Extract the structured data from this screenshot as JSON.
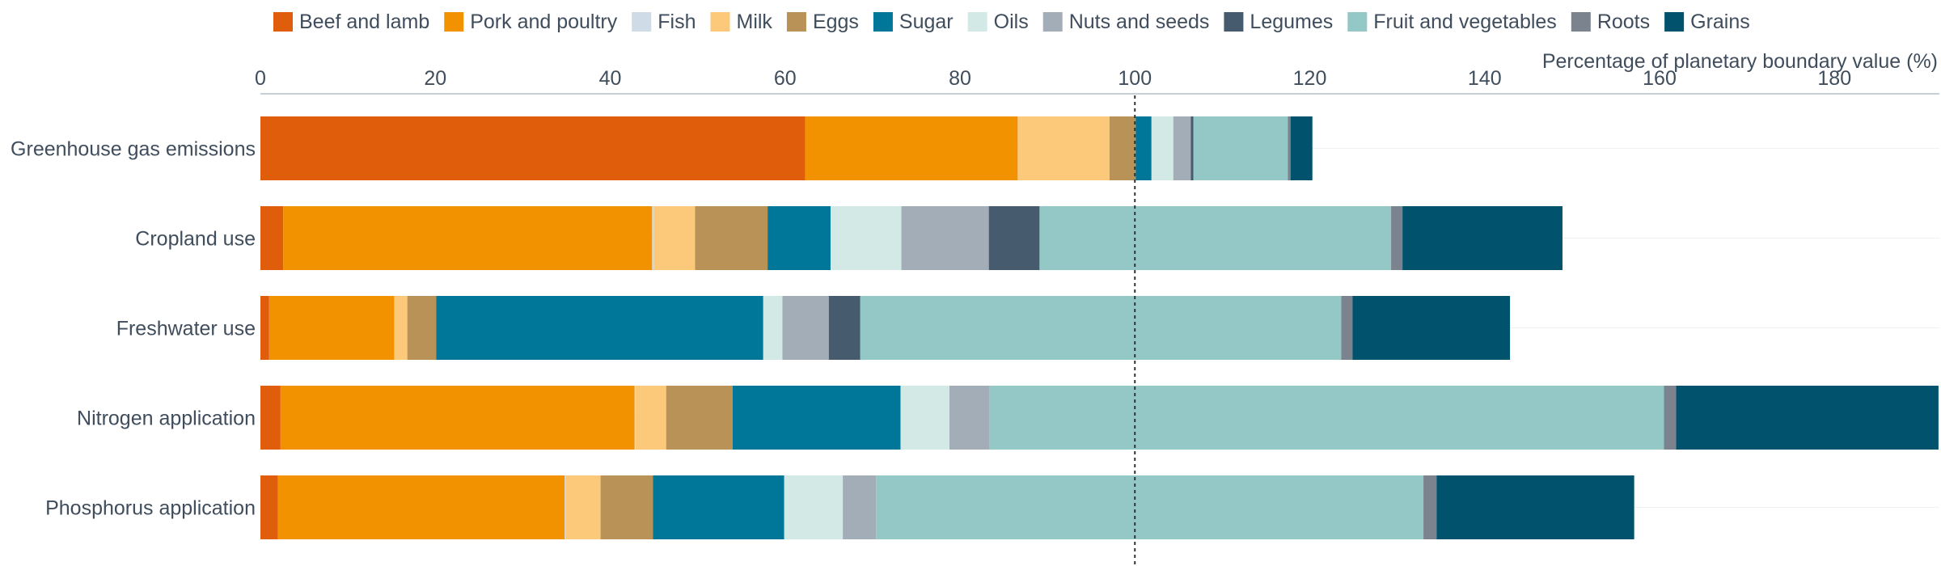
{
  "chart_data": {
    "type": "bar",
    "orientation": "horizontal",
    "stacked": true,
    "xlabel": "Percentage of planetary boundary value (%)",
    "xlim": [
      0,
      192
    ],
    "xticks": [
      0,
      20,
      40,
      60,
      80,
      100,
      120,
      140,
      160,
      180
    ],
    "reference_line": 100,
    "legend_position": "top",
    "categories": [
      "Greenhouse gas emissions",
      "Cropland use",
      "Freshwater use",
      "Nitrogen application",
      "Phosphorus application"
    ],
    "series": [
      {
        "name": "Beef and lamb",
        "color": "#e05e0b",
        "values": [
          62.3,
          2.6,
          1.0,
          2.3,
          2.0
        ]
      },
      {
        "name": "Pork and poultry",
        "color": "#f39201",
        "values": [
          24.3,
          42.2,
          14.3,
          40.5,
          32.8
        ]
      },
      {
        "name": "Fish",
        "color": "#cfdbe6",
        "values": [
          0.0,
          0.2,
          0.0,
          0.1,
          0.1
        ]
      },
      {
        "name": "Milk",
        "color": "#fcc879",
        "values": [
          10.5,
          4.7,
          1.5,
          3.5,
          4.0
        ]
      },
      {
        "name": "Eggs",
        "color": "#b99257",
        "values": [
          3.0,
          8.3,
          3.3,
          7.6,
          6.0
        ]
      },
      {
        "name": "Sugar",
        "color": "#007699",
        "values": [
          1.8,
          7.2,
          37.4,
          19.2,
          15.0
        ]
      },
      {
        "name": "Oils",
        "color": "#d2e9e6",
        "values": [
          2.5,
          8.1,
          2.2,
          5.6,
          6.7
        ]
      },
      {
        "name": "Nuts and seeds",
        "color": "#a2adb8",
        "values": [
          2.0,
          10.0,
          5.3,
          4.6,
          3.8
        ]
      },
      {
        "name": "Legumes",
        "color": "#465b6d",
        "values": [
          0.3,
          5.8,
          3.6,
          0.0,
          0.0
        ]
      },
      {
        "name": "Fruit and vegetables",
        "color": "#94c8c7",
        "values": [
          10.8,
          40.2,
          55.0,
          77.1,
          62.6
        ]
      },
      {
        "name": "Roots",
        "color": "#7a838e",
        "values": [
          0.3,
          1.3,
          1.3,
          1.4,
          1.5
        ]
      },
      {
        "name": "Grains",
        "color": "#01526c",
        "values": [
          2.5,
          18.3,
          18.0,
          30.0,
          22.6
        ]
      }
    ]
  }
}
